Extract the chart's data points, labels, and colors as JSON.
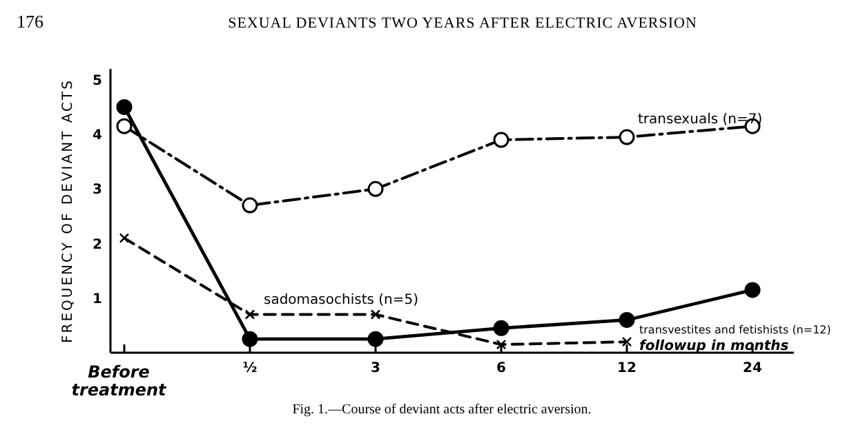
{
  "chart_data": {
    "type": "line",
    "title": "SEXUAL DEVIANTS TWO YEARS AFTER ELECTRIC AVERSION",
    "annotations": [
      "176",
      "Fig. 1.—Course of deviant acts after electric aversion."
    ],
    "xlabel": "followup in months",
    "ylabel": "FREQUENCY OF DEVIANT ACTS",
    "categories": [
      "Before treatment",
      "½",
      "3",
      "6",
      "12",
      "24"
    ],
    "ylim": [
      0,
      5.2
    ],
    "yticks": [
      1,
      2,
      3,
      4,
      5
    ],
    "grid": false,
    "series": [
      {
        "name": "transexuals (n=7)",
        "color": "#000000",
        "marker": "circle-open",
        "line_style": "dashdot",
        "values": [
          4.15,
          2.7,
          3.0,
          3.9,
          3.95,
          4.15
        ]
      },
      {
        "name": "transvestites and fetishists (n=12)",
        "color": "#000000",
        "marker": "circle",
        "line_style": "solid",
        "values": [
          4.5,
          0.25,
          0.25,
          0.45,
          0.6,
          1.15
        ]
      },
      {
        "name": "sadomasochists (n=5)",
        "color": "#000000",
        "marker": "cross",
        "line_style": "dashed",
        "values": [
          2.1,
          0.7,
          0.7,
          0.15,
          0.2,
          null
        ]
      }
    ]
  }
}
